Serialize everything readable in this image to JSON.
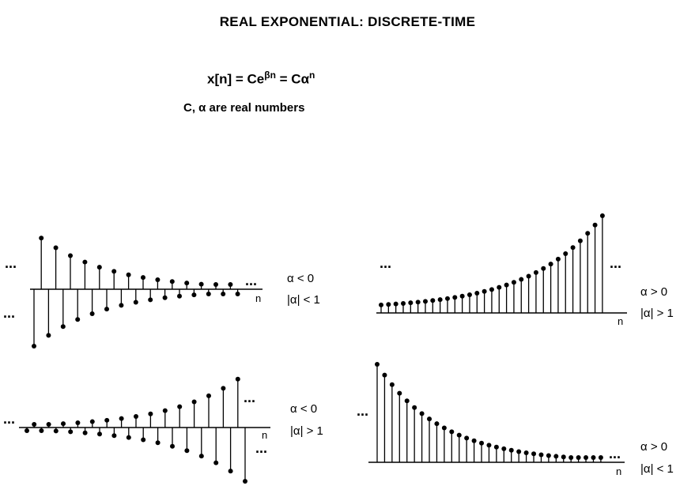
{
  "title": "REAL EXPONENTIAL:  DISCRETE-TIME",
  "formula": {
    "lhs": "x[n] = Ce",
    "exp1": "βn",
    "mid": " = Cα",
    "exp2": "n"
  },
  "note": "C, α  are real numbers",
  "panels": [
    {
      "id": "alt-decay",
      "axis_label": "n",
      "cond1": "α < 0",
      "cond2": "|α| < 1",
      "ellipses": [
        "...",
        "...",
        "..."
      ]
    },
    {
      "id": "growth",
      "axis_label": "n",
      "cond1": "α > 0",
      "cond2": "|α| > 1",
      "ellipses": [
        "...",
        "..."
      ]
    },
    {
      "id": "alt-growth",
      "axis_label": "n",
      "cond1": "α < 0",
      "cond2": "|α| > 1",
      "ellipses": [
        "...",
        "...",
        "..."
      ]
    },
    {
      "id": "decay",
      "axis_label": "n",
      "cond1": "α > 0",
      "cond2": "|α| < 1",
      "ellipses": [
        "...",
        "..."
      ]
    }
  ]
}
